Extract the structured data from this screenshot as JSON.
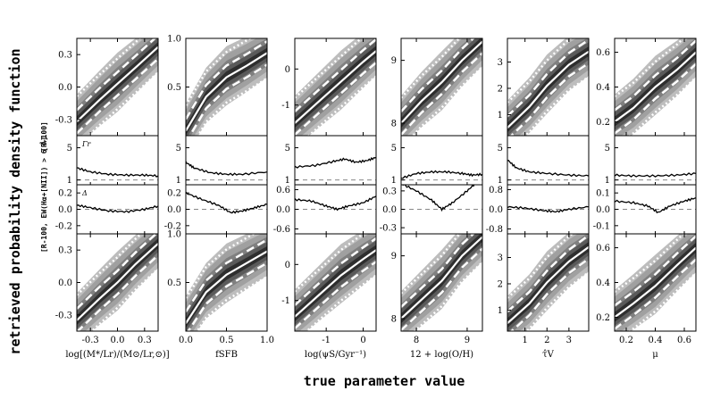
{
  "figure": {
    "ylabel": "retrieved probability density function",
    "xlabel": "true parameter value",
    "row_labels": {
      "top": "[R-100]",
      "bottom": "[R-100, EW(Hα+[NII]) > 6 Å]"
    },
    "panel_letters": {
      "ratio": "Γr",
      "delta": "Δ"
    }
  },
  "chart_data": [
    {
      "type": "heatmap",
      "parameter": "log[(M*/Lr)/(M⊙/Lr,⊙)]",
      "xlabel": "log[(M*/Lr)/(M⊙/Lr,⊙)]",
      "xlim": [
        -0.45,
        0.45
      ],
      "x_ticks": [
        -0.3,
        0.0,
        0.3
      ],
      "x_tick_labels": [
        "-0.3",
        "0.0",
        "0.3"
      ],
      "main_ylim": [
        -0.45,
        0.45
      ],
      "main_y_ticks": [
        -0.3,
        0.0,
        0.3
      ],
      "main_y_tick_labels": [
        "-0.3",
        "0.0",
        "0.3"
      ],
      "ratio_ylim": [
        0.4,
        6.5
      ],
      "ratio_y_ticks": [
        1,
        5
      ],
      "ratio_y_tick_labels": [
        "1",
        "5"
      ],
      "ratio_curve_top": [
        [
          -0.45,
          2.5
        ],
        [
          -0.3,
          2.0
        ],
        [
          -0.1,
          1.7
        ],
        [
          0.1,
          1.6
        ],
        [
          0.3,
          1.6
        ],
        [
          0.45,
          1.5
        ]
      ],
      "delta_ylim": [
        -0.3,
        0.3
      ],
      "delta_y_ticks": [
        -0.2,
        0.0,
        0.2
      ],
      "delta_y_tick_labels": [
        "-0.2",
        "0.0",
        "0.2"
      ],
      "delta_curve_top": [
        [
          -0.45,
          0.05
        ],
        [
          -0.3,
          0.02
        ],
        [
          -0.1,
          -0.02
        ],
        [
          0.1,
          -0.03
        ],
        [
          0.3,
          0.0
        ],
        [
          0.45,
          0.04
        ]
      ],
      "median_top": [
        [
          -0.45,
          -0.32
        ],
        [
          -0.2,
          -0.12
        ],
        [
          0.0,
          0.03
        ],
        [
          0.2,
          0.18
        ],
        [
          0.45,
          0.37
        ]
      ],
      "median_bottom": [
        [
          -0.45,
          -0.35
        ],
        [
          -0.2,
          -0.15
        ],
        [
          0.0,
          0.0
        ],
        [
          0.2,
          0.17
        ],
        [
          0.45,
          0.36
        ]
      ]
    },
    {
      "type": "heatmap",
      "parameter": "fSFB",
      "xlabel": "fSFB",
      "xlim": [
        0.0,
        1.0
      ],
      "x_ticks": [
        0.0,
        0.5,
        1.0
      ],
      "x_tick_labels": [
        "0.0",
        "0.5",
        "1.0"
      ],
      "main_ylim": [
        0.0,
        1.0
      ],
      "main_y_ticks": [
        0.5,
        1.0
      ],
      "main_y_tick_labels": [
        "0.5",
        "1.0"
      ],
      "ratio_ylim": [
        0.4,
        6.5
      ],
      "ratio_y_ticks": [
        1,
        5
      ],
      "ratio_y_tick_labels": [
        "1",
        "5"
      ],
      "ratio_curve_top": [
        [
          0.0,
          3.2
        ],
        [
          0.1,
          2.5
        ],
        [
          0.3,
          1.9
        ],
        [
          0.5,
          1.7
        ],
        [
          0.7,
          1.7
        ],
        [
          1.0,
          2.0
        ]
      ],
      "delta_ylim": [
        -0.3,
        0.3
      ],
      "delta_y_ticks": [
        -0.2,
        0.0,
        0.2
      ],
      "delta_y_tick_labels": [
        "-0.2",
        "0.0",
        "0.2"
      ],
      "delta_curve_top": [
        [
          0.0,
          0.2
        ],
        [
          0.2,
          0.12
        ],
        [
          0.4,
          0.05
        ],
        [
          0.55,
          -0.04
        ],
        [
          0.7,
          -0.02
        ],
        [
          0.85,
          0.02
        ],
        [
          1.0,
          0.06
        ]
      ],
      "median_top": [
        [
          0.0,
          0.05
        ],
        [
          0.25,
          0.4
        ],
        [
          0.5,
          0.6
        ],
        [
          0.75,
          0.72
        ],
        [
          1.0,
          0.85
        ]
      ],
      "median_bottom": [
        [
          0.0,
          0.08
        ],
        [
          0.25,
          0.4
        ],
        [
          0.5,
          0.58
        ],
        [
          0.75,
          0.7
        ],
        [
          1.0,
          0.82
        ]
      ]
    },
    {
      "type": "heatmap",
      "parameter": "log(ψS/Gyr⁻¹)",
      "xlabel": "log(ψS/Gyr⁻¹)",
      "xlim": [
        -1.85,
        0.35
      ],
      "x_ticks": [
        -1.0,
        0.0
      ],
      "x_tick_labels": [
        "-1",
        "0"
      ],
      "main_ylim": [
        -1.85,
        0.85
      ],
      "main_y_ticks": [
        -1.0,
        0.0
      ],
      "main_y_tick_labels": [
        "-1",
        "0"
      ],
      "ratio_ylim": [
        0.4,
        6.5
      ],
      "ratio_y_ticks": [
        1,
        5
      ],
      "ratio_y_tick_labels": [
        "1",
        "5"
      ],
      "ratio_curve_top": [
        [
          -1.85,
          2.6
        ],
        [
          -1.3,
          2.8
        ],
        [
          -0.8,
          3.3
        ],
        [
          -0.5,
          3.6
        ],
        [
          -0.2,
          3.2
        ],
        [
          0.1,
          3.4
        ],
        [
          0.35,
          3.8
        ]
      ],
      "delta_ylim": [
        -0.75,
        0.75
      ],
      "delta_y_ticks": [
        -0.6,
        0.0,
        0.6
      ],
      "delta_y_tick_labels": [
        "-0.6",
        "0.0",
        "0.6"
      ],
      "delta_curve_top": [
        [
          -1.85,
          0.3
        ],
        [
          -1.4,
          0.25
        ],
        [
          -1.0,
          0.1
        ],
        [
          -0.7,
          0.0
        ],
        [
          -0.4,
          0.1
        ],
        [
          0.0,
          0.2
        ],
        [
          0.35,
          0.4
        ]
      ],
      "median_top": [
        [
          -1.85,
          -1.5
        ],
        [
          -1.2,
          -0.9
        ],
        [
          -0.6,
          -0.35
        ],
        [
          0.0,
          0.2
        ],
        [
          0.35,
          0.5
        ]
      ],
      "median_bottom": [
        [
          -1.85,
          -1.45
        ],
        [
          -1.2,
          -0.85
        ],
        [
          -0.6,
          -0.3
        ],
        [
          0.0,
          0.15
        ],
        [
          0.35,
          0.4
        ]
      ]
    },
    {
      "type": "heatmap",
      "parameter": "12 + log(O/H)",
      "xlabel": "12 + log(O/H)",
      "xlim": [
        7.7,
        9.3
      ],
      "x_ticks": [
        8.0,
        9.0
      ],
      "x_tick_labels": [
        "8",
        "9"
      ],
      "main_ylim": [
        7.8,
        9.35
      ],
      "main_y_ticks": [
        8.0,
        9.0
      ],
      "main_y_tick_labels": [
        "8",
        "9"
      ],
      "ratio_ylim": [
        0.4,
        6.5
      ],
      "ratio_y_ticks": [
        1,
        5
      ],
      "ratio_y_tick_labels": [
        "1",
        "5"
      ],
      "ratio_curve_top": [
        [
          7.7,
          1.2
        ],
        [
          8.0,
          1.8
        ],
        [
          8.3,
          2.0
        ],
        [
          8.6,
          2.0
        ],
        [
          8.9,
          1.8
        ],
        [
          9.1,
          1.6
        ],
        [
          9.3,
          1.7
        ]
      ],
      "delta_ylim": [
        -0.4,
        0.4
      ],
      "delta_y_ticks": [
        -0.3,
        0.0,
        0.3
      ],
      "delta_y_tick_labels": [
        "-0.3",
        "0.0",
        "0.3"
      ],
      "delta_curve_top": [
        [
          7.7,
          0.42
        ],
        [
          8.0,
          0.3
        ],
        [
          8.3,
          0.15
        ],
        [
          8.5,
          0.0
        ],
        [
          8.7,
          0.1
        ],
        [
          9.0,
          0.3
        ],
        [
          9.2,
          0.45
        ]
      ],
      "median_top": [
        [
          7.7,
          8.0
        ],
        [
          8.1,
          8.35
        ],
        [
          8.5,
          8.65
        ],
        [
          8.9,
          9.0
        ],
        [
          9.3,
          9.3
        ]
      ],
      "median_bottom": [
        [
          7.7,
          8.0
        ],
        [
          8.1,
          8.3
        ],
        [
          8.5,
          8.6
        ],
        [
          8.9,
          9.0
        ],
        [
          9.3,
          9.3
        ]
      ]
    },
    {
      "type": "heatmap",
      "parameter": "τ̂V",
      "xlabel": "τ̂V",
      "xlim": [
        0.2,
        3.9
      ],
      "x_ticks": [
        1.0,
        2.0,
        3.0
      ],
      "x_tick_labels": [
        "1",
        "2",
        "3"
      ],
      "main_ylim": [
        0.2,
        3.9
      ],
      "main_y_ticks": [
        1.0,
        2.0,
        3.0
      ],
      "main_y_tick_labels": [
        "1",
        "2",
        "3"
      ],
      "ratio_ylim": [
        0.4,
        6.5
      ],
      "ratio_y_ticks": [
        1,
        5
      ],
      "ratio_y_tick_labels": [
        "1",
        "5"
      ],
      "ratio_curve_top": [
        [
          0.2,
          3.5
        ],
        [
          0.6,
          2.5
        ],
        [
          1.2,
          2.0
        ],
        [
          2.0,
          1.8
        ],
        [
          3.0,
          1.6
        ],
        [
          3.9,
          1.5
        ]
      ],
      "delta_ylim": [
        -1.0,
        1.0
      ],
      "delta_y_ticks": [
        -0.8,
        0.0,
        0.8
      ],
      "delta_y_tick_labels": [
        "-0.8",
        "0.0",
        "0.8"
      ],
      "delta_curve_top": [
        [
          0.2,
          0.1
        ],
        [
          1.0,
          0.05
        ],
        [
          1.8,
          -0.05
        ],
        [
          2.4,
          -0.1
        ],
        [
          3.0,
          0.0
        ],
        [
          3.9,
          0.1
        ]
      ],
      "median_top": [
        [
          0.2,
          0.5
        ],
        [
          1.2,
          1.3
        ],
        [
          2.0,
          2.1
        ],
        [
          3.0,
          2.9
        ],
        [
          3.9,
          3.4
        ]
      ],
      "median_bottom": [
        [
          0.2,
          0.5
        ],
        [
          1.2,
          1.25
        ],
        [
          2.0,
          2.05
        ],
        [
          3.0,
          2.85
        ],
        [
          3.9,
          3.4
        ]
      ]
    },
    {
      "type": "heatmap",
      "parameter": "μ",
      "xlabel": "μ",
      "xlim": [
        0.12,
        0.68
      ],
      "x_ticks": [
        0.2,
        0.4,
        0.6
      ],
      "x_tick_labels": [
        "0.2",
        "0.4",
        "0.6"
      ],
      "main_ylim": [
        0.12,
        0.68
      ],
      "main_y_ticks": [
        0.2,
        0.4,
        0.6
      ],
      "main_y_tick_labels": [
        "0.2",
        "0.4",
        "0.6"
      ],
      "ratio_ylim": [
        0.4,
        6.5
      ],
      "ratio_y_ticks": [
        1,
        5
      ],
      "ratio_y_tick_labels": [
        "1",
        "5"
      ],
      "ratio_curve_top": [
        [
          0.12,
          1.6
        ],
        [
          0.25,
          1.5
        ],
        [
          0.4,
          1.5
        ],
        [
          0.55,
          1.6
        ],
        [
          0.68,
          1.8
        ]
      ],
      "delta_ylim": [
        -0.15,
        0.15
      ],
      "delta_y_ticks": [
        -0.1,
        0.0,
        0.1
      ],
      "delta_y_tick_labels": [
        "-0.1",
        "0.0",
        "0.1"
      ],
      "delta_curve_top": [
        [
          0.12,
          0.05
        ],
        [
          0.25,
          0.04
        ],
        [
          0.35,
          0.02
        ],
        [
          0.42,
          -0.02
        ],
        [
          0.5,
          0.02
        ],
        [
          0.6,
          0.05
        ],
        [
          0.68,
          0.07
        ]
      ],
      "median_top": [
        [
          0.12,
          0.2
        ],
        [
          0.25,
          0.28
        ],
        [
          0.4,
          0.4
        ],
        [
          0.55,
          0.5
        ],
        [
          0.68,
          0.6
        ]
      ],
      "median_bottom": [
        [
          0.12,
          0.2
        ],
        [
          0.25,
          0.28
        ],
        [
          0.4,
          0.38
        ],
        [
          0.55,
          0.5
        ],
        [
          0.68,
          0.6
        ]
      ]
    }
  ]
}
